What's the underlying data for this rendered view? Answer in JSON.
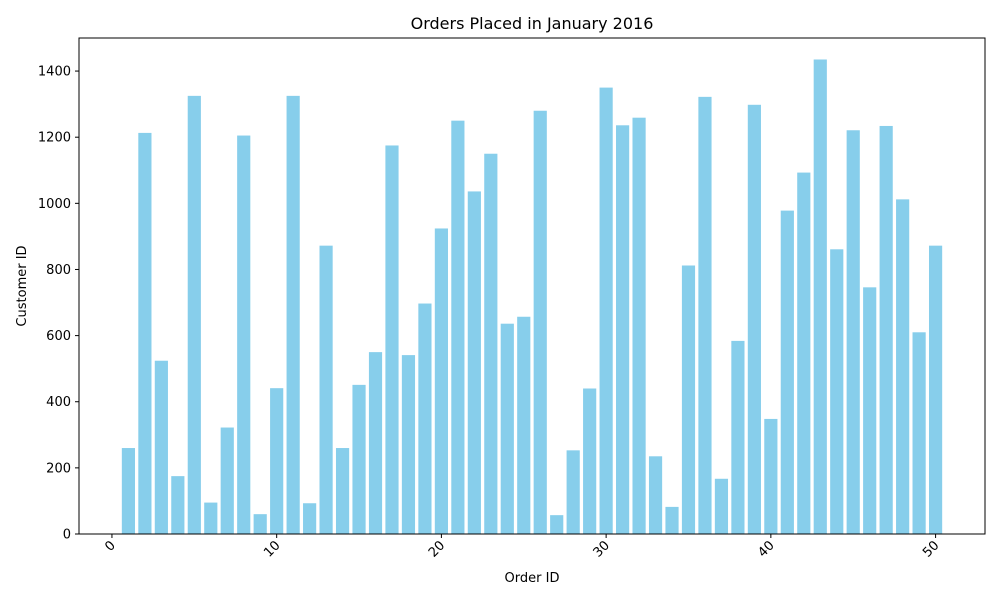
{
  "chart_data": {
    "type": "bar",
    "title": "Orders Placed in January 2016",
    "xlabel": "Order ID",
    "ylabel": "Customer ID",
    "x": [
      1,
      2,
      3,
      4,
      5,
      6,
      7,
      8,
      9,
      10,
      11,
      12,
      13,
      14,
      15,
      16,
      17,
      18,
      19,
      20,
      21,
      22,
      23,
      24,
      25,
      26,
      27,
      28,
      29,
      30,
      31,
      32,
      33,
      34,
      35,
      36,
      37,
      38,
      39,
      40,
      41,
      42,
      43,
      44,
      45,
      46,
      47,
      48,
      49,
      50
    ],
    "values": [
      260,
      1213,
      524,
      175,
      1325,
      95,
      322,
      1205,
      60,
      441,
      1325,
      93,
      872,
      260,
      451,
      550,
      1175,
      541,
      697,
      924,
      1250,
      1036,
      1150,
      636,
      657,
      1280,
      57,
      253,
      440,
      1350,
      1236,
      1259,
      235,
      82,
      812,
      1322,
      167,
      584,
      1298,
      348,
      978,
      1093,
      1435,
      861,
      1221,
      746,
      1234,
      1012,
      610,
      872
    ],
    "xlim": [
      -2,
      53
    ],
    "ylim": [
      0,
      1500
    ],
    "xticks": [
      0,
      10,
      20,
      30,
      40,
      50
    ],
    "yticks": [
      0,
      200,
      400,
      600,
      800,
      1000,
      1200,
      1400
    ],
    "bar_color": "#87CEEB",
    "grid": false,
    "xtick_rotation": 45
  }
}
